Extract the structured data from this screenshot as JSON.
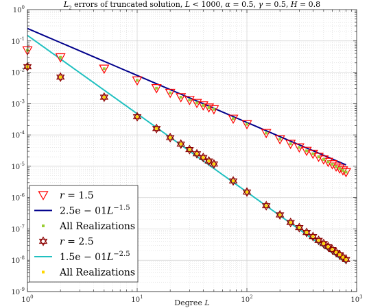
{
  "chart_data": {
    "type": "scatter",
    "title": {
      "subject": "L",
      "subject_sub": "2",
      "text": " errors of truncated solution, ",
      "params": [
        {
          "sym": "L",
          "op": " < ",
          "val": "1000"
        },
        {
          "sym": "α",
          "op": " = ",
          "val": "0.5"
        },
        {
          "sym": "γ",
          "op": " = ",
          "val": "0.5"
        },
        {
          "sym": "H",
          "op": " = ",
          "val": "0.8"
        }
      ]
    },
    "xlabel": {
      "text": "Degree ",
      "sym": "L"
    },
    "x_scale": "log",
    "y_scale": "log",
    "xlim": [
      1,
      1000
    ],
    "ylim": [
      1e-09,
      1
    ],
    "x_ticks": [
      {
        "base": "10",
        "exp": "0",
        "value": 1
      },
      {
        "base": "10",
        "exp": "1",
        "value": 10
      },
      {
        "base": "10",
        "exp": "2",
        "value": 100
      },
      {
        "base": "10",
        "exp": "3",
        "value": 1000
      }
    ],
    "y_ticks": [
      {
        "base": "10",
        "exp": "0",
        "value": 1
      },
      {
        "base": "10",
        "exp": "-1",
        "value": 0.1
      },
      {
        "base": "10",
        "exp": "-2",
        "value": 0.01
      },
      {
        "base": "10",
        "exp": "-3",
        "value": 0.001
      },
      {
        "base": "10",
        "exp": "-4",
        "value": 0.0001
      },
      {
        "base": "10",
        "exp": "-5",
        "value": 1e-05
      },
      {
        "base": "10",
        "exp": "-6",
        "value": 1e-06
      },
      {
        "base": "10",
        "exp": "-7",
        "value": 1e-07
      },
      {
        "base": "10",
        "exp": "-8",
        "value": 1e-08
      },
      {
        "base": "10",
        "exp": "-9",
        "value": 1e-09
      }
    ],
    "grid": true,
    "legend_position": "bottom-left",
    "series": [
      {
        "name": {
          "sym": "r",
          "op": " = ",
          "val": "1.5"
        },
        "kind": "marker",
        "marker": "triangle-down",
        "color": "#ff0000",
        "x": [
          1,
          2,
          5,
          10,
          15,
          20,
          25,
          30,
          35,
          40,
          45,
          50,
          75,
          100,
          150,
          200,
          250,
          300,
          350,
          400,
          450,
          500,
          550,
          600,
          650,
          700,
          750,
          800
        ],
        "y": [
          0.05,
          0.03,
          0.013,
          0.0055,
          0.0031,
          0.0022,
          0.0016,
          0.0013,
          0.00105,
          0.00088,
          0.00075,
          0.00066,
          0.00033,
          0.00022,
          0.000115,
          7.3e-05,
          5.2e-05,
          4e-05,
          3.1e-05,
          2.5e-05,
          2e-05,
          1.65e-05,
          1.38e-05,
          1.16e-05,
          9.8e-06,
          8.5e-06,
          7.4e-06,
          6.5e-06
        ]
      },
      {
        "name": {
          "text": "2.5e − 01",
          "sym": "L",
          "exp": "−1.5"
        },
        "kind": "line",
        "color": "#00008b",
        "coef": 0.25,
        "power": -1.5
      },
      {
        "name": {
          "text": "All Realizations"
        },
        "kind": "dots",
        "color": "#9acd32",
        "x": [
          1,
          2,
          5,
          10,
          15,
          20,
          25,
          30,
          35,
          40,
          45,
          50,
          75,
          100,
          150,
          200,
          250,
          300,
          350,
          400,
          450,
          500,
          550,
          600,
          650,
          700,
          750,
          800
        ],
        "y": [
          0.05,
          0.03,
          0.013,
          0.0055,
          0.0031,
          0.0022,
          0.0016,
          0.0013,
          0.00105,
          0.00088,
          0.00075,
          0.00066,
          0.00033,
          0.00022,
          0.000115,
          7.3e-05,
          5.2e-05,
          4e-05,
          3.1e-05,
          2.5e-05,
          2e-05,
          1.65e-05,
          1.38e-05,
          1.16e-05,
          9.8e-06,
          8.5e-06,
          7.4e-06,
          6.5e-06
        ]
      },
      {
        "name": {
          "sym": "r",
          "op": " = ",
          "val": "2.5"
        },
        "kind": "marker",
        "marker": "hexagram",
        "color": "#8b0000",
        "x": [
          1,
          2,
          5,
          10,
          15,
          20,
          25,
          30,
          35,
          40,
          45,
          50,
          75,
          100,
          150,
          200,
          250,
          300,
          350,
          400,
          450,
          500,
          550,
          600,
          650,
          700,
          750,
          800
        ],
        "y": [
          0.015,
          0.007,
          0.0016,
          0.00038,
          0.00016,
          8.2e-05,
          5.1e-05,
          3.4e-05,
          2.5e-05,
          1.9e-05,
          1.47e-05,
          1.18e-05,
          3.4e-06,
          1.5e-06,
          5.5e-07,
          2.8e-07,
          1.6e-07,
          1.1e-07,
          7.7e-08,
          5.7e-08,
          4.3e-08,
          3.4e-08,
          2.7e-08,
          2.2e-08,
          1.8e-08,
          1.5e-08,
          1.25e-08,
          1.05e-08
        ]
      },
      {
        "name": {
          "text": "1.5e − 01",
          "sym": "L",
          "exp": "−2.5"
        },
        "kind": "line",
        "color": "#20c0c0",
        "coef": 0.15,
        "power": -2.5
      },
      {
        "name": {
          "text": "All Realizations"
        },
        "kind": "dots",
        "color": "#ffd700",
        "x": [
          1,
          2,
          5,
          10,
          15,
          20,
          25,
          30,
          35,
          40,
          45,
          50,
          75,
          100,
          150,
          200,
          250,
          300,
          350,
          400,
          450,
          500,
          550,
          600,
          650,
          700,
          750,
          800
        ],
        "y": [
          0.015,
          0.007,
          0.0016,
          0.00038,
          0.00016,
          8.2e-05,
          5.1e-05,
          3.4e-05,
          2.5e-05,
          1.9e-05,
          1.47e-05,
          1.18e-05,
          3.4e-06,
          1.5e-06,
          5.5e-07,
          2.8e-07,
          1.6e-07,
          1.1e-07,
          7.7e-08,
          5.7e-08,
          4.3e-08,
          3.4e-08,
          2.7e-08,
          2.2e-08,
          1.8e-08,
          1.5e-08,
          1.25e-08,
          1.05e-08
        ]
      }
    ]
  }
}
